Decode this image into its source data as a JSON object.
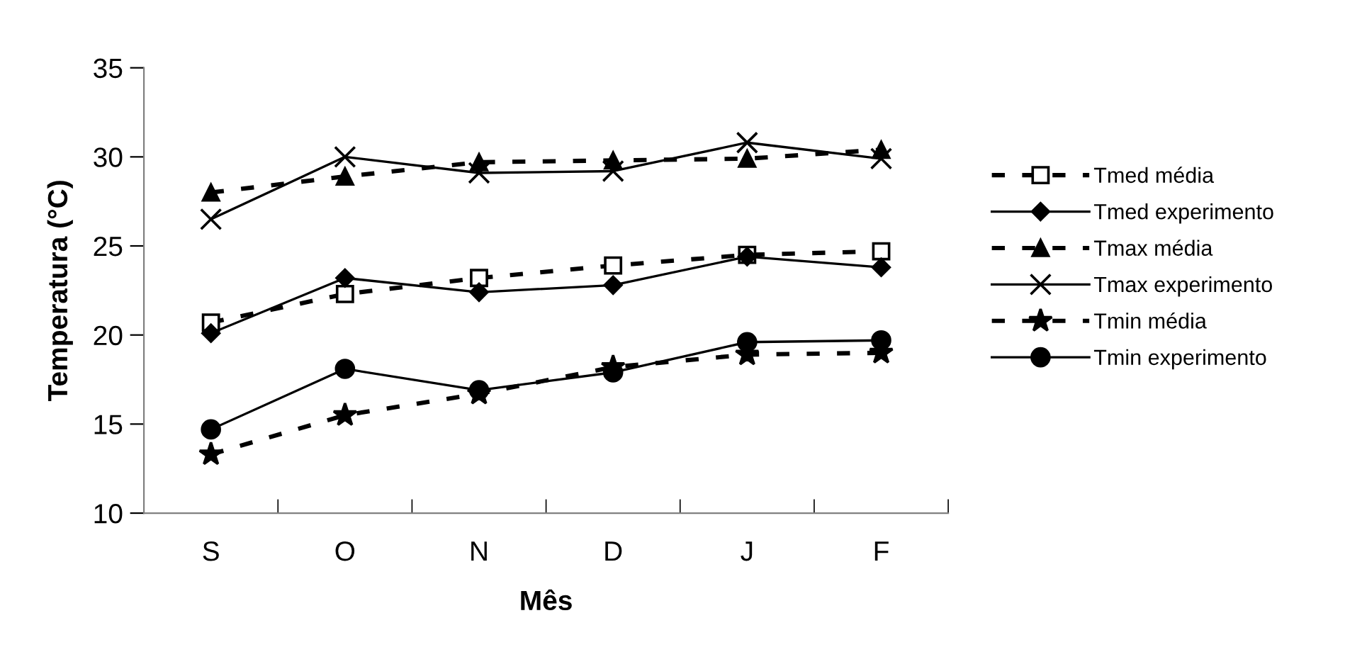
{
  "chart_data": {
    "type": "line",
    "xlabel": "Mês",
    "ylabel": "Temperatura (°C)",
    "categories": [
      "S",
      "O",
      "N",
      "D",
      "J",
      "F"
    ],
    "ylim": [
      10,
      35
    ],
    "yticks": [
      10,
      15,
      20,
      25,
      30,
      35
    ],
    "grid": false,
    "legend": "right",
    "series": [
      {
        "name": "Tmed média",
        "color": "#000000",
        "marker": "square",
        "line_style": "dashed",
        "values": [
          20.7,
          22.3,
          23.2,
          23.9,
          24.5,
          24.7
        ]
      },
      {
        "name": "Tmed experimento",
        "color": "#000000",
        "marker": "diamond",
        "line_style": "solid",
        "values": [
          20.1,
          23.2,
          22.4,
          22.8,
          24.4,
          23.8
        ]
      },
      {
        "name": "Tmax média",
        "color": "#000000",
        "marker": "triangle",
        "line_style": "dashed",
        "values": [
          28.0,
          28.9,
          29.7,
          29.8,
          29.9,
          30.4
        ]
      },
      {
        "name": "Tmax experimento",
        "color": "#000000",
        "marker": "cross",
        "line_style": "solid",
        "values": [
          26.5,
          30.0,
          29.1,
          29.2,
          30.8,
          29.9
        ]
      },
      {
        "name": "Tmin média",
        "color": "#000000",
        "marker": "star",
        "line_style": "dashed",
        "values": [
          13.3,
          15.5,
          16.7,
          18.2,
          18.9,
          19.0
        ]
      },
      {
        "name": "Tmin experimento",
        "color": "#000000",
        "marker": "circle",
        "line_style": "solid",
        "values": [
          14.7,
          18.1,
          16.9,
          17.9,
          19.6,
          19.7
        ]
      }
    ]
  }
}
